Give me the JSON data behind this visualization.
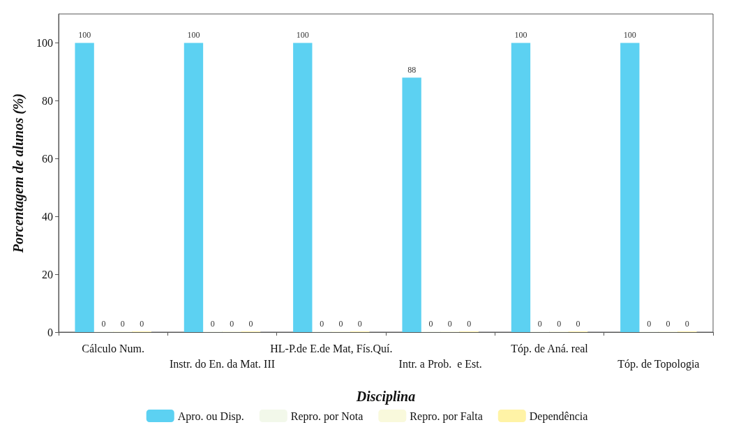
{
  "chart_data": {
    "type": "bar",
    "xlabel": "Disciplina",
    "ylabel": "Porcentagem de alunos (%)",
    "categories": [
      "Cálculo Num.",
      "Instr. do En. da Mat. III",
      "HL-P.de E.de Mat, Fís.Quí.",
      "Intr. a Prob.  e Est.",
      "Tóp. de Aná. real",
      "Tóp. de Topologia"
    ],
    "series": [
      {
        "name": "Apro. ou Disp.",
        "color": "#5cd1f2",
        "values": [
          100,
          100,
          100,
          88,
          100,
          100
        ]
      },
      {
        "name": "Repro. por Nota",
        "color": "#f2f8ea",
        "values": [
          0,
          0,
          0,
          0,
          0,
          0
        ]
      },
      {
        "name": "Repro. por Falta",
        "color": "#f9f9dc",
        "values": [
          0,
          0,
          0,
          0,
          0,
          0
        ]
      },
      {
        "name": "Dependência",
        "color": "#fff3a6",
        "values": [
          0,
          0,
          0,
          0,
          0,
          0
        ]
      }
    ],
    "ylim": [
      0,
      110
    ],
    "yticks": [
      0,
      20,
      40,
      60,
      80,
      100
    ],
    "data_labels": true,
    "legend": "bottom",
    "grid": false
  }
}
